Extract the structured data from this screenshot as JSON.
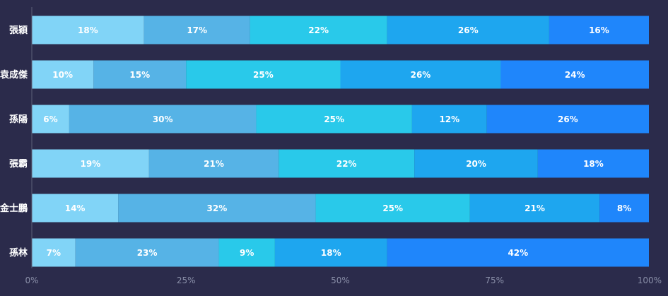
{
  "chart_data": {
    "type": "bar",
    "orientation": "horizontal",
    "stacked": "percent",
    "title": "",
    "xlabel": "",
    "ylabel": "",
    "xlim": [
      0,
      100
    ],
    "x_ticks": [
      "0%",
      "25%",
      "50%",
      "75%",
      "100%"
    ],
    "grid": false,
    "categories": [
      "張穎",
      "袁成傑",
      "孫陽",
      "張霸",
      "金士鵬",
      "孫林"
    ],
    "series": [
      {
        "color": "#81d4f7",
        "values": [
          18,
          10,
          6,
          19,
          14,
          7
        ],
        "labels": [
          "18%",
          "10%",
          "6%",
          "19%",
          "14%",
          "7%"
        ]
      },
      {
        "color": "#56b3e6",
        "values": [
          17,
          15,
          30,
          21,
          32,
          23
        ],
        "labels": [
          "17%",
          "15%",
          "30%",
          "21%",
          "32%",
          "23%"
        ]
      },
      {
        "color": "#29c9ea",
        "values": [
          22,
          25,
          25,
          22,
          25,
          9
        ],
        "labels": [
          "22%",
          "25%",
          "25%",
          "22%",
          "25%",
          "9%"
        ]
      },
      {
        "color": "#1ea6ef",
        "values": [
          26,
          26,
          12,
          20,
          21,
          18
        ],
        "labels": [
          "26%",
          "26%",
          "12%",
          "20%",
          "21%",
          "18%"
        ]
      },
      {
        "color": "#1f86fb",
        "values": [
          16,
          24,
          26,
          18,
          8,
          42
        ],
        "labels": [
          "16%",
          "24%",
          "26%",
          "18%",
          "8%",
          "42%"
        ]
      }
    ]
  }
}
